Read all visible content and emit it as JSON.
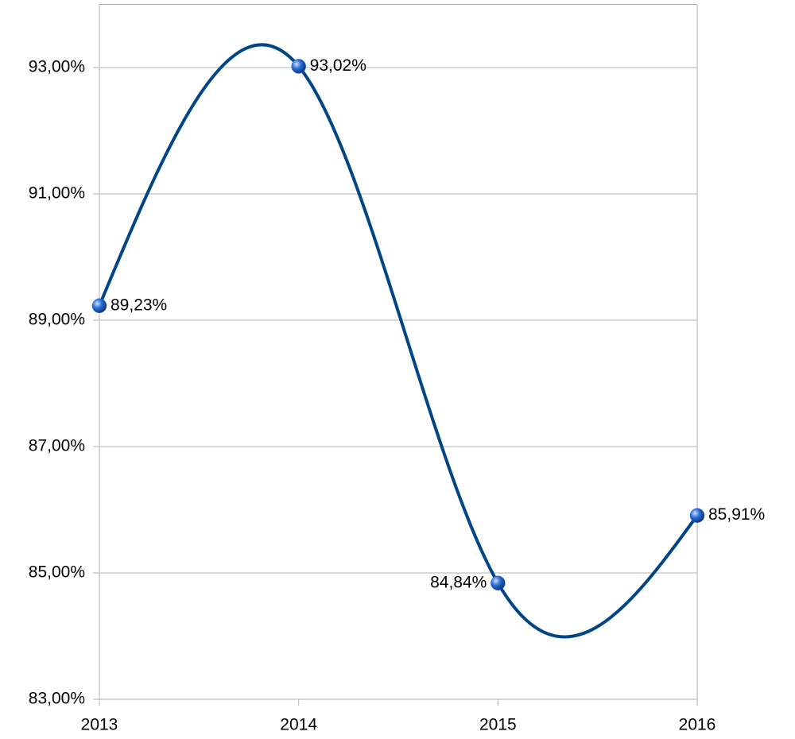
{
  "chart_data": {
    "type": "line",
    "categories": [
      "2013",
      "2014",
      "2015",
      "2016"
    ],
    "series": [
      {
        "color": "#004586",
        "marker_color": "#2a6fd6",
        "values": [
          89.23,
          93.02,
          84.84,
          85.91
        ],
        "value_labels": [
          "89,23%",
          "93,02%",
          "84,84%",
          "85,91%"
        ],
        "value_label_positions": [
          "right",
          "right",
          "left",
          "right"
        ]
      }
    ],
    "smooth": true,
    "ylim": [
      83,
      94
    ],
    "yticks": [
      {
        "value": 83,
        "label": "83,00%"
      },
      {
        "value": 85,
        "label": "85,00%"
      },
      {
        "value": 87,
        "label": "87,00%"
      },
      {
        "value": 89,
        "label": "89,00%"
      },
      {
        "value": 91,
        "label": "91,00%"
      },
      {
        "value": 93,
        "label": "93,00%"
      }
    ],
    "grid": true
  }
}
